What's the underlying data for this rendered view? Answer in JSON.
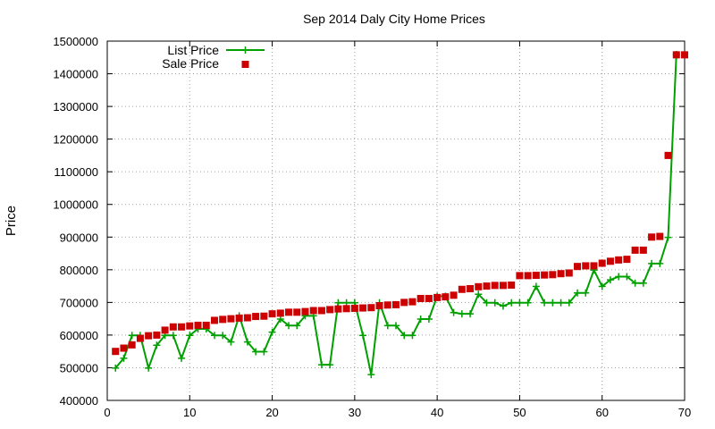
{
  "chart_data": {
    "type": "line",
    "title": "Sep 2014 Daly City Home Prices",
    "xlabel": "",
    "ylabel": "Price",
    "xlim": [
      0,
      70
    ],
    "ylim": [
      400000,
      1500000
    ],
    "xticks": [
      0,
      10,
      20,
      30,
      40,
      50,
      60,
      70
    ],
    "yticks": [
      400000,
      500000,
      600000,
      700000,
      800000,
      900000,
      1000000,
      1100000,
      1200000,
      1300000,
      1400000,
      1500000
    ],
    "grid": true,
    "legend_position": "top-left",
    "x": [
      1,
      2,
      3,
      4,
      5,
      6,
      7,
      8,
      9,
      10,
      11,
      12,
      13,
      14,
      15,
      16,
      17,
      18,
      19,
      20,
      21,
      22,
      23,
      24,
      25,
      26,
      27,
      28,
      29,
      30,
      31,
      32,
      33,
      34,
      35,
      36,
      37,
      38,
      39,
      40,
      41,
      42,
      43,
      44,
      45,
      46,
      47,
      48,
      49,
      50,
      51,
      52,
      53,
      54,
      55,
      56,
      57,
      58,
      59,
      60,
      61,
      62,
      63,
      64,
      65,
      66,
      67,
      68,
      69,
      70
    ],
    "series": [
      {
        "name": "List Price",
        "style": "line-with-plus-markers",
        "color": "#00a000",
        "values": [
          499000,
          529000,
          599000,
          599000,
          499000,
          569000,
          599000,
          599000,
          529000,
          599000,
          619000,
          619000,
          599000,
          599000,
          579000,
          659000,
          579000,
          549000,
          549000,
          609000,
          649000,
          629000,
          629000,
          659000,
          659000,
          509000,
          509000,
          699000,
          699000,
          699000,
          599000,
          479000,
          699000,
          629000,
          629000,
          599000,
          599000,
          649000,
          649000,
          719000,
          719000,
          669000,
          665000,
          665000,
          725000,
          699000,
          699000,
          689000,
          699000,
          699000,
          699000,
          749000,
          699000,
          699000,
          699000,
          699000,
          729000,
          729000,
          799000,
          749000,
          769000,
          779000,
          779000,
          759000,
          759000,
          819000,
          819000,
          899000,
          1459000,
          null
        ]
      },
      {
        "name": "Sale Price",
        "style": "square-markers",
        "color": "#cc0000",
        "values": [
          550000,
          560000,
          570000,
          590000,
          598000,
          600000,
          615000,
          625000,
          625000,
          628000,
          630000,
          630000,
          645000,
          648000,
          650000,
          652000,
          653000,
          657000,
          658000,
          665000,
          667000,
          670000,
          670000,
          672000,
          675000,
          675000,
          678000,
          680000,
          681000,
          682000,
          683000,
          684000,
          690000,
          692000,
          693000,
          700000,
          702000,
          712000,
          712000,
          715000,
          717000,
          722000,
          740000,
          742000,
          748000,
          750000,
          752000,
          752000,
          753000,
          782000,
          782000,
          783000,
          784000,
          785000,
          788000,
          790000,
          810000,
          812000,
          812000,
          820000,
          826000,
          830000,
          832000,
          860000,
          860000,
          900000,
          902000,
          1150000,
          1458000,
          1458000
        ]
      }
    ]
  }
}
